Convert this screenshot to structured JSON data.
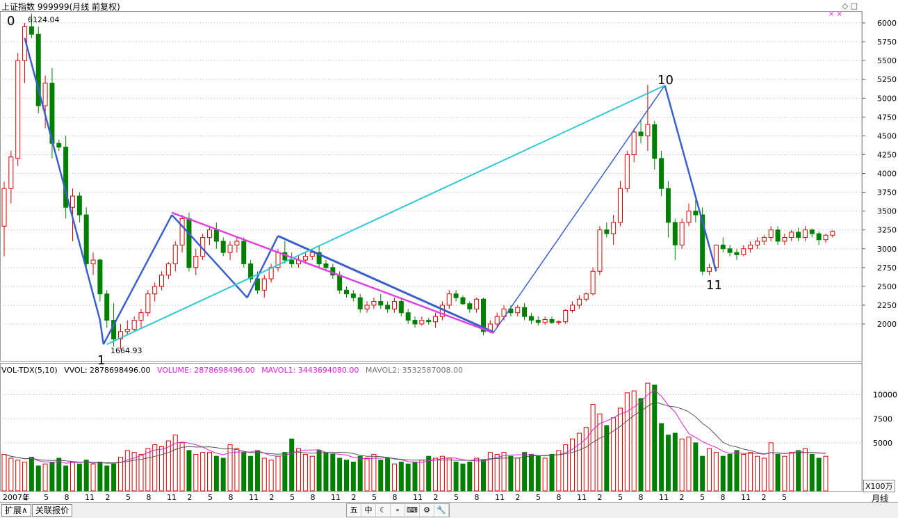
{
  "window": {
    "title": "上证指数 999999(月线 前复权)",
    "corner_icons": "◇ □"
  },
  "price_axis": {
    "labels": [
      "6000",
      "5750",
      "5500",
      "5250",
      "5000",
      "4750",
      "4500",
      "4250",
      "4000",
      "3750",
      "3500",
      "3250",
      "3000",
      "2750",
      "2500",
      "2250",
      "2000"
    ],
    "values": [
      6000,
      5750,
      5500,
      5250,
      5000,
      4750,
      4500,
      4250,
      4000,
      3750,
      3500,
      3250,
      3000,
      2750,
      2500,
      2250,
      2000
    ]
  },
  "annotations": {
    "high_label": "6124.04",
    "low_label": "1664.93",
    "wave_labels": [
      "0",
      "1",
      "10",
      "11"
    ],
    "markers": "× ×"
  },
  "volume_panel": {
    "indicator": "VOL-TDX(5,10)",
    "vvol": "VVOL: 2878698496.00",
    "volume": "VOLUME: 2878698496.00",
    "mavol1": "MAVOL1: 3443694080.00",
    "mavol2": "MAVOL2: 3532587008.00",
    "axis_labels": [
      "10000",
      "7500",
      "5000"
    ],
    "unit": "X100万"
  },
  "time_axis": {
    "labels": [
      "2007年",
      "2",
      "5",
      "8",
      "11",
      "2",
      "5",
      "8",
      "11",
      "2",
      "5",
      "8",
      "11",
      "2",
      "5",
      "8",
      "11",
      "2",
      "5",
      "8",
      "11",
      "2",
      "5",
      "8",
      "11",
      "2",
      "5",
      "8",
      "11",
      "2",
      "5",
      "8",
      "11",
      "2",
      "5",
      "8",
      "11",
      "2",
      "5"
    ],
    "period": "月线"
  },
  "bottom_bar": {
    "tab_expand": "扩展∧",
    "tab_quote": "关联报价",
    "toolbar_icons": [
      "五",
      "中",
      "☾",
      "∘",
      "⌨",
      "⚙",
      "🔧"
    ]
  },
  "colors": {
    "up": "#e00000",
    "down": "#008000",
    "wave_blue": "#3a5fcd",
    "wave_cyan": "#2ec8d8",
    "wave_magenta": "#e040e0",
    "grid": "#b0b0b0",
    "ma1": "#e020e0",
    "ma2": "#555555"
  },
  "chart_data": {
    "type": "candlestick",
    "title": "上证指数 999999(月线 前复权)",
    "ylim": [
      1500,
      6250
    ],
    "high_point": {
      "value": 6124.04,
      "label": "6124.04"
    },
    "low_point": {
      "value": 1664.93,
      "label": "1664.93"
    },
    "candles": [
      [
        3300,
        3890,
        2900,
        3800
      ],
      [
        3800,
        4300,
        3600,
        4220
      ],
      [
        4200,
        5600,
        4100,
        5500
      ],
      [
        5500,
        6000,
        5200,
        5950
      ],
      [
        5950,
        6124,
        5800,
        5850
      ],
      [
        5850,
        5950,
        4800,
        4900
      ],
      [
        4900,
        5300,
        4600,
        5200
      ],
      [
        5200,
        5400,
        4200,
        4400
      ],
      [
        4400,
        4450,
        4300,
        4350
      ],
      [
        4350,
        4500,
        3400,
        3550
      ],
      [
        3550,
        3800,
        3100,
        3700
      ],
      [
        3700,
        3750,
        3350,
        3450
      ],
      [
        3450,
        3550,
        2700,
        2800
      ],
      [
        2800,
        2950,
        2650,
        2850
      ],
      [
        2850,
        2870,
        2300,
        2400
      ],
      [
        2400,
        2450,
        1950,
        2050
      ],
      [
        2050,
        2280,
        1700,
        1800
      ],
      [
        1800,
        2000,
        1665,
        1900
      ],
      [
        1900,
        2050,
        1850,
        1930
      ],
      [
        1930,
        2100,
        1900,
        2050
      ],
      [
        2050,
        2200,
        1950,
        2150
      ],
      [
        2150,
        2450,
        2100,
        2400
      ],
      [
        2400,
        2550,
        2300,
        2500
      ],
      [
        2500,
        2700,
        2450,
        2650
      ],
      [
        2650,
        2820,
        2600,
        2800
      ],
      [
        2800,
        3100,
        2700,
        3050
      ],
      [
        3050,
        3450,
        2950,
        3400
      ],
      [
        3400,
        3480,
        2700,
        2750
      ],
      [
        2750,
        3000,
        2650,
        2900
      ],
      [
        2900,
        3200,
        2850,
        3150
      ],
      [
        3150,
        3300,
        3050,
        3250
      ],
      [
        3250,
        3350,
        3000,
        3100
      ],
      [
        3100,
        3150,
        2900,
        2950
      ],
      [
        2950,
        3100,
        2850,
        3050
      ],
      [
        3050,
        3150,
        2950,
        3100
      ],
      [
        3100,
        3150,
        2750,
        2800
      ],
      [
        2800,
        2850,
        2550,
        2600
      ],
      [
        2600,
        2700,
        2400,
        2450
      ],
      [
        2450,
        2650,
        2350,
        2600
      ],
      [
        2600,
        2800,
        2550,
        2750
      ],
      [
        2750,
        3000,
        2700,
        2950
      ],
      [
        2950,
        3100,
        2800,
        2850
      ],
      [
        2850,
        2950,
        2750,
        2800
      ],
      [
        2800,
        2900,
        2750,
        2850
      ],
      [
        2850,
        2950,
        2800,
        2900
      ],
      [
        2900,
        3000,
        2850,
        2950
      ],
      [
        2950,
        3050,
        2750,
        2800
      ],
      [
        2800,
        2850,
        2700,
        2750
      ],
      [
        2750,
        2800,
        2600,
        2650
      ],
      [
        2650,
        2700,
        2400,
        2450
      ],
      [
        2450,
        2500,
        2350,
        2400
      ],
      [
        2400,
        2450,
        2300,
        2350
      ],
      [
        2350,
        2400,
        2150,
        2200
      ],
      [
        2200,
        2300,
        2150,
        2250
      ],
      [
        2250,
        2350,
        2200,
        2300
      ],
      [
        2300,
        2400,
        2200,
        2250
      ],
      [
        2250,
        2300,
        2150,
        2200
      ],
      [
        2200,
        2350,
        2150,
        2300
      ],
      [
        2300,
        2350,
        2100,
        2150
      ],
      [
        2150,
        2200,
        2000,
        2050
      ],
      [
        2050,
        2100,
        1950,
        2000
      ],
      [
        2000,
        2100,
        1980,
        2050
      ],
      [
        2050,
        2080,
        1990,
        2030
      ],
      [
        2030,
        2150,
        1950,
        2100
      ],
      [
        2100,
        2300,
        2050,
        2250
      ],
      [
        2250,
        2450,
        2200,
        2400
      ],
      [
        2400,
        2450,
        2300,
        2350
      ],
      [
        2350,
        2380,
        2250,
        2270
      ],
      [
        2270,
        2300,
        2150,
        2200
      ],
      [
        2200,
        2350,
        2150,
        2330
      ],
      [
        2330,
        2350,
        1850,
        1900
      ],
      [
        1900,
        2050,
        1880,
        2000
      ],
      [
        2000,
        2150,
        1950,
        2100
      ],
      [
        2100,
        2250,
        2050,
        2200
      ],
      [
        2200,
        2250,
        2100,
        2150
      ],
      [
        2150,
        2250,
        2100,
        2220
      ],
      [
        2220,
        2280,
        2050,
        2100
      ],
      [
        2100,
        2150,
        2000,
        2050
      ],
      [
        2050,
        2100,
        1980,
        2020
      ],
      [
        2020,
        2100,
        1990,
        2060
      ],
      [
        2060,
        2100,
        2000,
        2020
      ],
      [
        2020,
        2050,
        1990,
        2030
      ],
      [
        2030,
        2200,
        2000,
        2180
      ],
      [
        2180,
        2300,
        2150,
        2250
      ],
      [
        2250,
        2380,
        2200,
        2330
      ],
      [
        2330,
        2420,
        2300,
        2400
      ],
      [
        2400,
        2750,
        2380,
        2700
      ],
      [
        2700,
        3300,
        2650,
        3250
      ],
      [
        3250,
        3350,
        3150,
        3200
      ],
      [
        3200,
        3450,
        3050,
        3350
      ],
      [
        3350,
        3900,
        3300,
        3800
      ],
      [
        3800,
        4300,
        3750,
        4250
      ],
      [
        4250,
        4600,
        4150,
        4550
      ],
      [
        4550,
        4700,
        4400,
        4500
      ],
      [
        4500,
        5178,
        4300,
        4650
      ],
      [
        4650,
        4700,
        4050,
        4200
      ],
      [
        4200,
        4300,
        3700,
        3800
      ],
      [
        3800,
        3900,
        3150,
        3350
      ],
      [
        3350,
        3400,
        2850,
        3050
      ],
      [
        3050,
        3400,
        3000,
        3350
      ],
      [
        3350,
        3600,
        3300,
        3500
      ],
      [
        3500,
        3650,
        3350,
        3450
      ],
      [
        3450,
        3550,
        2650,
        2700
      ],
      [
        2700,
        2800,
        2650,
        2750
      ],
      [
        2750,
        3050,
        2700,
        3050
      ],
      [
        3050,
        3150,
        2950,
        3000
      ],
      [
        3000,
        3050,
        2900,
        2950
      ],
      [
        2950,
        3000,
        2850,
        2920
      ],
      [
        2920,
        3050,
        2900,
        3000
      ],
      [
        3000,
        3100,
        2950,
        3050
      ],
      [
        3050,
        3150,
        3000,
        3100
      ],
      [
        3100,
        3180,
        3050,
        3150
      ],
      [
        3150,
        3300,
        3100,
        3250
      ],
      [
        3250,
        3300,
        3050,
        3100
      ],
      [
        3100,
        3200,
        3050,
        3150
      ],
      [
        3150,
        3250,
        3100,
        3220
      ],
      [
        3220,
        3280,
        3100,
        3150
      ],
      [
        3150,
        3300,
        3100,
        3250
      ],
      [
        3250,
        3270,
        3150,
        3200
      ],
      [
        3200,
        3230,
        3050,
        3120
      ],
      [
        3120,
        3200,
        3080,
        3180
      ],
      [
        3180,
        3250,
        3150,
        3230
      ]
    ],
    "volume": [
      38,
      34,
      32,
      30,
      35,
      26,
      28,
      30,
      34,
      26,
      30,
      28,
      32,
      28,
      30,
      26,
      28,
      35,
      42,
      40,
      38,
      44,
      48,
      46,
      52,
      58,
      50,
      42,
      38,
      40,
      40,
      36,
      34,
      48,
      44,
      40,
      36,
      42,
      34,
      32,
      36,
      40,
      54,
      44,
      38,
      36,
      42,
      40,
      38,
      34,
      32,
      30,
      36,
      34,
      38,
      32,
      34,
      28,
      30,
      28,
      30,
      32,
      36,
      34,
      36,
      34,
      30,
      28,
      30,
      34,
      32,
      40,
      38,
      40,
      36,
      34,
      40,
      38,
      36,
      34,
      38,
      42,
      48,
      54,
      60,
      66,
      90,
      80,
      68,
      76,
      86,
      102,
      104,
      96,
      112,
      110,
      70,
      58,
      60,
      54,
      56,
      50,
      36,
      44,
      40,
      36,
      38,
      42,
      38,
      40,
      36,
      34,
      50,
      38,
      36,
      40,
      42,
      44,
      38,
      34,
      36
    ],
    "mavol1_label": "MAVOL1",
    "mavol2_label": "MAVOL2"
  }
}
